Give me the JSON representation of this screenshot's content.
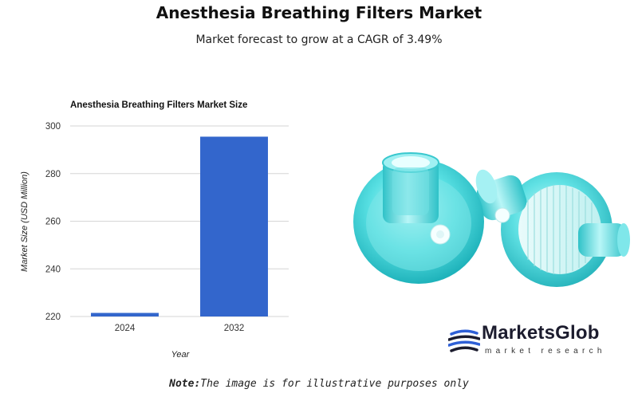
{
  "header": {
    "title": "Anesthesia Breathing Filters Market",
    "subtitle": "Market forecast to grow at a CAGR of 3.49%"
  },
  "chart_data": {
    "type": "bar",
    "title": "Anesthesia Breathing Filters Market Size",
    "xlabel": "Year",
    "ylabel": "Market Size (USD Million)",
    "categories": [
      "2024",
      "2032"
    ],
    "values": [
      221.5,
      295.5
    ],
    "ylim": [
      220,
      300
    ],
    "yticks": [
      220,
      240,
      260,
      280,
      300
    ],
    "grid": true,
    "bar_color": "#3366cc"
  },
  "brand": {
    "name": "MarketsGlob",
    "tagline": "market research"
  },
  "footnote": {
    "label": "Note:",
    "text": "The image is for illustrative purposes only"
  },
  "colors": {
    "filter_body": "#4fd8dc",
    "brand_dark": "#1c1c2e"
  }
}
